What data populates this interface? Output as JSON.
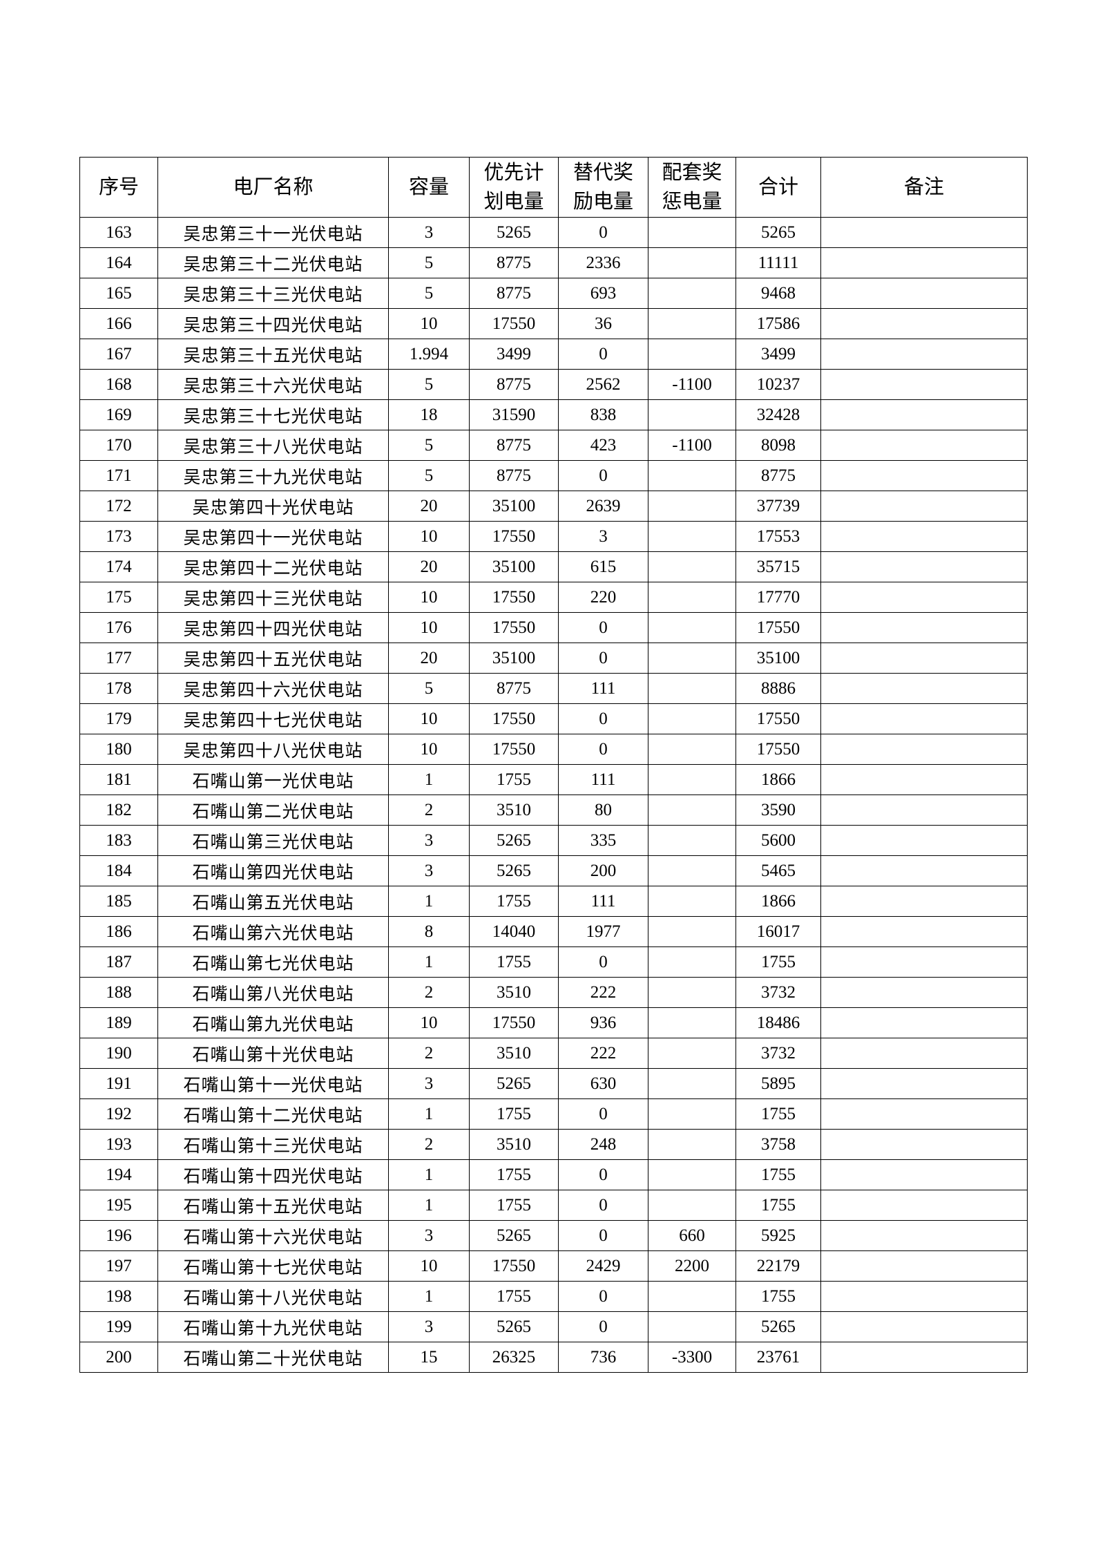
{
  "headers": [
    "序号",
    "电厂名称",
    "容量",
    "优先计划电量",
    "替代奖励电量",
    "配套奖惩电量",
    "合计",
    "备注"
  ],
  "header_lines": [
    [
      "序号"
    ],
    [
      "电厂名称"
    ],
    [
      "容量"
    ],
    [
      "优先计",
      "划电量"
    ],
    [
      "替代奖",
      "励电量"
    ],
    [
      "配套奖",
      "惩电量"
    ],
    [
      "合计"
    ],
    [
      "备注"
    ]
  ],
  "rows": [
    [
      "163",
      "吴忠第三十一光伏电站",
      "3",
      "5265",
      "0",
      "",
      "5265",
      ""
    ],
    [
      "164",
      "吴忠第三十二光伏电站",
      "5",
      "8775",
      "2336",
      "",
      "11111",
      ""
    ],
    [
      "165",
      "吴忠第三十三光伏电站",
      "5",
      "8775",
      "693",
      "",
      "9468",
      ""
    ],
    [
      "166",
      "吴忠第三十四光伏电站",
      "10",
      "17550",
      "36",
      "",
      "17586",
      ""
    ],
    [
      "167",
      "吴忠第三十五光伏电站",
      "1.994",
      "3499",
      "0",
      "",
      "3499",
      ""
    ],
    [
      "168",
      "吴忠第三十六光伏电站",
      "5",
      "8775",
      "2562",
      "-1100",
      "10237",
      ""
    ],
    [
      "169",
      "吴忠第三十七光伏电站",
      "18",
      "31590",
      "838",
      "",
      "32428",
      ""
    ],
    [
      "170",
      "吴忠第三十八光伏电站",
      "5",
      "8775",
      "423",
      "-1100",
      "8098",
      ""
    ],
    [
      "171",
      "吴忠第三十九光伏电站",
      "5",
      "8775",
      "0",
      "",
      "8775",
      ""
    ],
    [
      "172",
      "吴忠第四十光伏电站",
      "20",
      "35100",
      "2639",
      "",
      "37739",
      ""
    ],
    [
      "173",
      "吴忠第四十一光伏电站",
      "10",
      "17550",
      "3",
      "",
      "17553",
      ""
    ],
    [
      "174",
      "吴忠第四十二光伏电站",
      "20",
      "35100",
      "615",
      "",
      "35715",
      ""
    ],
    [
      "175",
      "吴忠第四十三光伏电站",
      "10",
      "17550",
      "220",
      "",
      "17770",
      ""
    ],
    [
      "176",
      "吴忠第四十四光伏电站",
      "10",
      "17550",
      "0",
      "",
      "17550",
      ""
    ],
    [
      "177",
      "吴忠第四十五光伏电站",
      "20",
      "35100",
      "0",
      "",
      "35100",
      ""
    ],
    [
      "178",
      "吴忠第四十六光伏电站",
      "5",
      "8775",
      "111",
      "",
      "8886",
      ""
    ],
    [
      "179",
      "吴忠第四十七光伏电站",
      "10",
      "17550",
      "0",
      "",
      "17550",
      ""
    ],
    [
      "180",
      "吴忠第四十八光伏电站",
      "10",
      "17550",
      "0",
      "",
      "17550",
      ""
    ],
    [
      "181",
      "石嘴山第一光伏电站",
      "1",
      "1755",
      "111",
      "",
      "1866",
      ""
    ],
    [
      "182",
      "石嘴山第二光伏电站",
      "2",
      "3510",
      "80",
      "",
      "3590",
      ""
    ],
    [
      "183",
      "石嘴山第三光伏电站",
      "3",
      "5265",
      "335",
      "",
      "5600",
      ""
    ],
    [
      "184",
      "石嘴山第四光伏电站",
      "3",
      "5265",
      "200",
      "",
      "5465",
      ""
    ],
    [
      "185",
      "石嘴山第五光伏电站",
      "1",
      "1755",
      "111",
      "",
      "1866",
      ""
    ],
    [
      "186",
      "石嘴山第六光伏电站",
      "8",
      "14040",
      "1977",
      "",
      "16017",
      ""
    ],
    [
      "187",
      "石嘴山第七光伏电站",
      "1",
      "1755",
      "0",
      "",
      "1755",
      ""
    ],
    [
      "188",
      "石嘴山第八光伏电站",
      "2",
      "3510",
      "222",
      "",
      "3732",
      ""
    ],
    [
      "189",
      "石嘴山第九光伏电站",
      "10",
      "17550",
      "936",
      "",
      "18486",
      ""
    ],
    [
      "190",
      "石嘴山第十光伏电站",
      "2",
      "3510",
      "222",
      "",
      "3732",
      ""
    ],
    [
      "191",
      "石嘴山第十一光伏电站",
      "3",
      "5265",
      "630",
      "",
      "5895",
      ""
    ],
    [
      "192",
      "石嘴山第十二光伏电站",
      "1",
      "1755",
      "0",
      "",
      "1755",
      ""
    ],
    [
      "193",
      "石嘴山第十三光伏电站",
      "2",
      "3510",
      "248",
      "",
      "3758",
      ""
    ],
    [
      "194",
      "石嘴山第十四光伏电站",
      "1",
      "1755",
      "0",
      "",
      "1755",
      ""
    ],
    [
      "195",
      "石嘴山第十五光伏电站",
      "1",
      "1755",
      "0",
      "",
      "1755",
      ""
    ],
    [
      "196",
      "石嘴山第十六光伏电站",
      "3",
      "5265",
      "0",
      "660",
      "5925",
      ""
    ],
    [
      "197",
      "石嘴山第十七光伏电站",
      "10",
      "17550",
      "2429",
      "2200",
      "22179",
      ""
    ],
    [
      "198",
      "石嘴山第十八光伏电站",
      "1",
      "1755",
      "0",
      "",
      "1755",
      ""
    ],
    [
      "199",
      "石嘴山第十九光伏电站",
      "3",
      "5265",
      "0",
      "",
      "5265",
      ""
    ],
    [
      "200",
      "石嘴山第二十光伏电站",
      "15",
      "26325",
      "736",
      "-3300",
      "23761",
      ""
    ]
  ]
}
